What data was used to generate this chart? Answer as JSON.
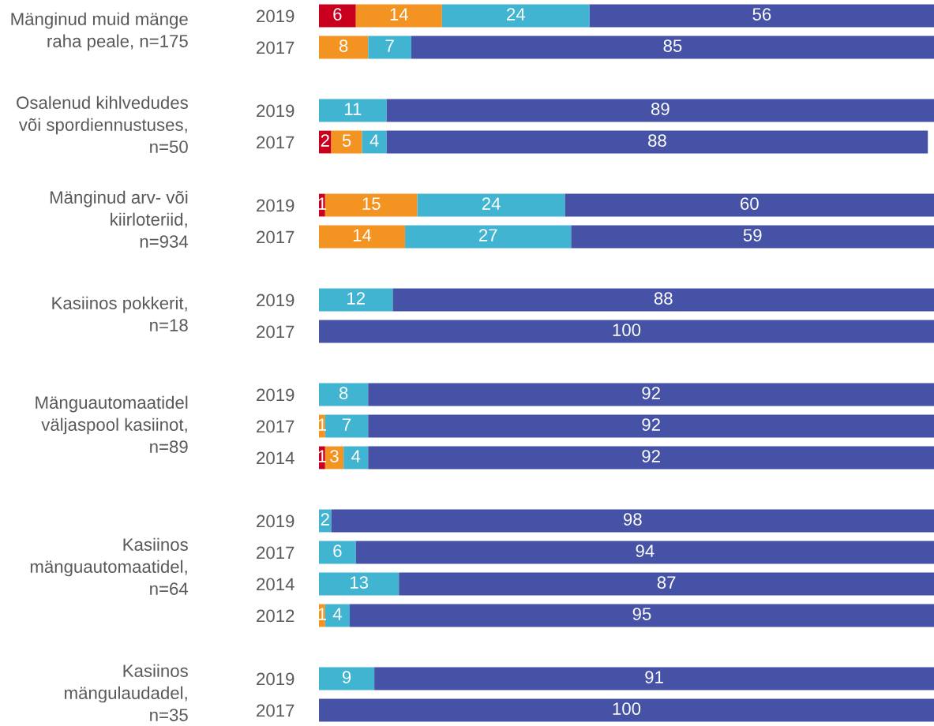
{
  "chart_data": {
    "type": "bar",
    "orientation": "horizontal",
    "stacked": true,
    "data_labels": true,
    "tick_labels": "y",
    "grid": false,
    "xlim": [
      0,
      100
    ],
    "categories": [
      "2019",
      "2017",
      null,
      "2019",
      "2017",
      null,
      "2019",
      "2017",
      null,
      "2019",
      "2017",
      null,
      "2019",
      "2017",
      "2014",
      null,
      "2019",
      "2017",
      "2014",
      "2012",
      null,
      "2019",
      "2017"
    ],
    "series": [
      {
        "color": "#c8001e",
        "values": [
          6,
          null,
          null,
          null,
          2,
          null,
          1,
          null,
          null,
          null,
          null,
          null,
          null,
          null,
          1,
          null,
          null,
          null,
          null,
          null,
          null,
          null,
          null
        ]
      },
      {
        "color": "#f39321",
        "values": [
          14,
          8,
          null,
          null,
          5,
          null,
          15,
          14,
          null,
          null,
          null,
          null,
          null,
          1,
          3,
          null,
          null,
          null,
          null,
          1,
          null,
          null,
          null
        ]
      },
      {
        "color": "#40b4d0",
        "values": [
          24,
          7,
          null,
          11,
          4,
          null,
          24,
          27,
          null,
          12,
          null,
          null,
          8,
          7,
          4,
          null,
          2,
          6,
          13,
          4,
          null,
          9,
          null
        ]
      },
      {
        "color": "#4652a6",
        "values": [
          56,
          85,
          null,
          89,
          88,
          null,
          60,
          59,
          null,
          88,
          100,
          null,
          92,
          92,
          92,
          null,
          98,
          94,
          87,
          95,
          null,
          91,
          100
        ]
      }
    ],
    "annotations": [
      "Mänginud muid mänge\nraha peale, n=175",
      "Osalenud kihlvedudes\nvõi spordiennustuses,\nn=50",
      "Mänginud arv- või\nkiirloteriid,\nn=934",
      "Kasiinos pokkerit,\nn=18",
      "Mänguautomaatidel\nväljaspool kasiinot,\nn=89",
      "Kasiinos\nmänguautomaatidel,\nn=64",
      "Kasiinos\nmängulaudadel,\nn=35"
    ]
  }
}
